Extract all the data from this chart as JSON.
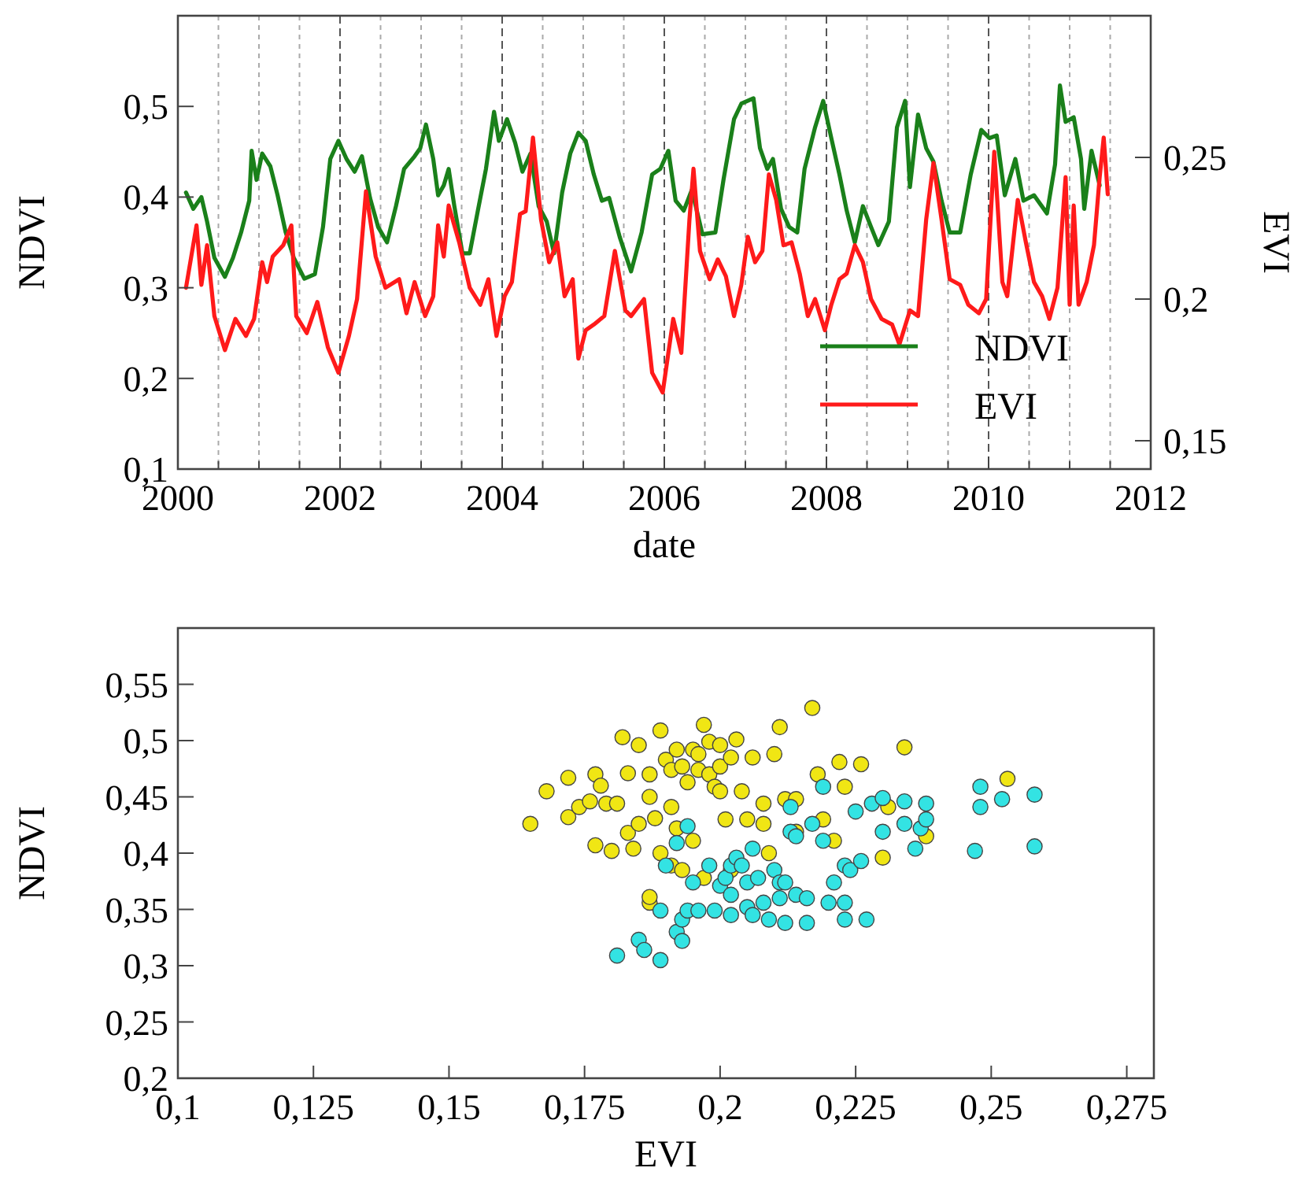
{
  "chart_data": [
    {
      "type": "line",
      "xlabel": "date",
      "ylabel": "NDVI",
      "y2label": "EVI",
      "xlim": [
        2000,
        2012
      ],
      "ylim": [
        0.1,
        0.6
      ],
      "y2lim": [
        0.14,
        0.3
      ],
      "xticks": [
        2000,
        {
          "value": 2000.5,
          "label": null
        },
        {
          "value": 2001,
          "label": null
        },
        {
          "value": 2001.5,
          "label": null
        },
        2002,
        {
          "value": 2002.5,
          "label": null
        },
        {
          "value": 2003,
          "label": null
        },
        {
          "value": 2003.5,
          "label": null
        },
        2004,
        {
          "value": 2004.5,
          "label": null
        },
        {
          "value": 2005,
          "label": null
        },
        {
          "value": 2005.5,
          "label": null
        },
        2006,
        {
          "value": 2006.5,
          "label": null
        },
        {
          "value": 2007,
          "label": null
        },
        {
          "value": 2007.5,
          "label": null
        },
        2008,
        {
          "value": 2008.5,
          "label": null
        },
        {
          "value": 2009,
          "label": null
        },
        {
          "value": 2009.5,
          "label": null
        },
        2010,
        {
          "value": 2010.5,
          "label": null
        },
        {
          "value": 2011,
          "label": null
        },
        {
          "value": 2011.5,
          "label": null
        },
        2012
      ],
      "yticks": [
        {
          "value": 0.1,
          "label": "0,1"
        },
        {
          "value": 0.2,
          "label": "0,2"
        },
        {
          "value": 0.3,
          "label": "0,3"
        },
        {
          "value": 0.4,
          "label": "0,4"
        },
        {
          "value": 0.5,
          "label": "0,5"
        }
      ],
      "y2ticks": [
        {
          "value": 0.15,
          "label": "0,15"
        },
        {
          "value": 0.2,
          "label": "0,2"
        },
        {
          "value": 0.25,
          "label": "0,25"
        }
      ],
      "grid": "x",
      "legend": "bottom right",
      "series": [
        {
          "name": "NDVI",
          "color": "#1a801a",
          "x": [
            2000.1,
            2000.19,
            2000.29,
            2000.36,
            2000.45,
            2000.58,
            2000.68,
            2000.78,
            2000.88,
            2000.91,
            2000.97,
            2001.04,
            2001.14,
            2001.23,
            2001.33,
            2001.43,
            2001.56,
            2001.69,
            2001.79,
            2001.88,
            2001.98,
            2002.08,
            2002.18,
            2002.27,
            2002.37,
            2002.47,
            2002.58,
            2002.69,
            2002.79,
            2002.92,
            2002.99,
            2003.06,
            2003.15,
            2003.21,
            2003.28,
            2003.34,
            2003.41,
            2003.51,
            2003.6,
            2003.7,
            2003.8,
            2003.9,
            2003.96,
            2004.06,
            2004.16,
            2004.25,
            2004.35,
            2004.45,
            2004.55,
            2004.64,
            2004.74,
            2004.84,
            2004.94,
            2005.03,
            2005.13,
            2005.23,
            2005.32,
            2005.45,
            2005.59,
            2005.72,
            2005.85,
            2005.95,
            2006.05,
            2006.14,
            2006.24,
            2006.34,
            2006.47,
            2006.63,
            2006.73,
            2006.86,
            2006.95,
            2007.1,
            2007.18,
            2007.27,
            2007.34,
            2007.44,
            2007.54,
            2007.64,
            2007.73,
            2007.86,
            2007.96,
            2008.06,
            2008.16,
            2008.25,
            2008.35,
            2008.45,
            2008.55,
            2008.64,
            2008.77,
            2008.87,
            2008.97,
            2009.03,
            2009.13,
            2009.23,
            2009.32,
            2009.42,
            2009.52,
            2009.65,
            2009.78,
            2009.91,
            2010.01,
            2010.1,
            2010.2,
            2010.33,
            2010.43,
            2010.56,
            2010.72,
            2010.82,
            2010.88,
            2010.95,
            2011.05,
            2011.14,
            2011.18,
            2011.27,
            2011.37
          ],
          "values": [
            0.405,
            0.387,
            0.4,
            0.373,
            0.333,
            0.312,
            0.333,
            0.361,
            0.396,
            0.451,
            0.419,
            0.448,
            0.434,
            0.402,
            0.361,
            0.333,
            0.31,
            0.315,
            0.367,
            0.442,
            0.462,
            0.442,
            0.428,
            0.445,
            0.399,
            0.367,
            0.35,
            0.39,
            0.431,
            0.445,
            0.454,
            0.48,
            0.442,
            0.402,
            0.413,
            0.431,
            0.39,
            0.338,
            0.338,
            0.385,
            0.431,
            0.494,
            0.462,
            0.486,
            0.46,
            0.428,
            0.448,
            0.39,
            0.373,
            0.338,
            0.405,
            0.448,
            0.471,
            0.462,
            0.425,
            0.396,
            0.399,
            0.356,
            0.318,
            0.361,
            0.425,
            0.431,
            0.451,
            0.396,
            0.385,
            0.408,
            0.359,
            0.361,
            0.419,
            0.486,
            0.503,
            0.509,
            0.454,
            0.431,
            0.442,
            0.387,
            0.367,
            0.361,
            0.431,
            0.477,
            0.506,
            0.465,
            0.425,
            0.385,
            0.35,
            0.39,
            0.367,
            0.347,
            0.373,
            0.477,
            0.506,
            0.411,
            0.491,
            0.454,
            0.439,
            0.396,
            0.361,
            0.361,
            0.425,
            0.474,
            0.465,
            0.468,
            0.402,
            0.442,
            0.396,
            0.402,
            0.382,
            0.436,
            0.523,
            0.483,
            0.488,
            0.442,
            0.387,
            0.451,
            0.413
          ]
        },
        {
          "name": "EVI",
          "color": "#ff1a1a",
          "axis": "y2",
          "x": [
            2000.1,
            2000.23,
            2000.29,
            2000.36,
            2000.45,
            2000.58,
            2000.71,
            2000.84,
            2000.94,
            2001.04,
            2001.1,
            2001.17,
            2001.3,
            2001.4,
            2001.46,
            2001.59,
            2001.72,
            2001.85,
            2001.98,
            2002.11,
            2002.21,
            2002.32,
            2002.44,
            2002.56,
            2002.73,
            2002.82,
            2002.92,
            2003.05,
            2003.15,
            2003.21,
            2003.28,
            2003.34,
            2003.47,
            2003.6,
            2003.73,
            2003.83,
            2003.93,
            2004.03,
            2004.12,
            2004.22,
            2004.29,
            2004.38,
            2004.48,
            2004.58,
            2004.68,
            2004.77,
            2004.87,
            2004.94,
            2005.03,
            2005.13,
            2005.26,
            2005.39,
            2005.52,
            2005.59,
            2005.75,
            2005.85,
            2005.98,
            2006.11,
            2006.21,
            2006.31,
            2006.36,
            2006.44,
            2006.56,
            2006.66,
            2006.76,
            2006.86,
            2006.95,
            2007.03,
            2007.12,
            2007.21,
            2007.29,
            2007.38,
            2007.47,
            2007.57,
            2007.67,
            2007.77,
            2007.86,
            2007.98,
            2008.06,
            2008.16,
            2008.25,
            2008.35,
            2008.45,
            2008.55,
            2008.68,
            2008.81,
            2008.9,
            2009.03,
            2009.13,
            2009.23,
            2009.32,
            2009.42,
            2009.52,
            2009.65,
            2009.75,
            2009.88,
            2009.97,
            2010.07,
            2010.17,
            2010.23,
            2010.36,
            2010.46,
            2010.56,
            2010.66,
            2010.75,
            2010.85,
            2010.95,
            2011.0,
            2011.05,
            2011.11,
            2011.21,
            2011.3,
            2011.37,
            2011.42,
            2011.47
          ],
          "values": [
            0.204,
            0.226,
            0.205,
            0.219,
            0.194,
            0.182,
            0.193,
            0.187,
            0.193,
            0.213,
            0.206,
            0.215,
            0.219,
            0.226,
            0.194,
            0.188,
            0.199,
            0.183,
            0.174,
            0.187,
            0.2,
            0.238,
            0.215,
            0.204,
            0.207,
            0.195,
            0.206,
            0.194,
            0.201,
            0.226,
            0.215,
            0.233,
            0.22,
            0.204,
            0.198,
            0.207,
            0.187,
            0.201,
            0.206,
            0.23,
            0.231,
            0.257,
            0.228,
            0.213,
            0.22,
            0.201,
            0.207,
            0.179,
            0.189,
            0.191,
            0.194,
            0.217,
            0.196,
            0.194,
            0.2,
            0.174,
            0.167,
            0.193,
            0.181,
            0.228,
            0.246,
            0.217,
            0.207,
            0.214,
            0.208,
            0.194,
            0.205,
            0.222,
            0.213,
            0.217,
            0.244,
            0.235,
            0.219,
            0.22,
            0.209,
            0.194,
            0.2,
            0.189,
            0.198,
            0.207,
            0.209,
            0.219,
            0.213,
            0.2,
            0.193,
            0.191,
            0.184,
            0.196,
            0.194,
            0.228,
            0.248,
            0.228,
            0.207,
            0.205,
            0.198,
            0.195,
            0.2,
            0.252,
            0.206,
            0.201,
            0.235,
            0.22,
            0.206,
            0.201,
            0.193,
            0.204,
            0.243,
            0.198,
            0.233,
            0.198,
            0.206,
            0.219,
            0.243,
            0.257,
            0.237
          ]
        }
      ]
    },
    {
      "type": "scatter",
      "xlabel": "EVI",
      "ylabel": "NDVI",
      "xlim": [
        0.1,
        0.28
      ],
      "ylim": [
        0.2,
        0.6
      ],
      "marker": "circle",
      "xticks": [
        {
          "value": 0.1,
          "label": "0,1"
        },
        {
          "value": 0.125,
          "label": "0,125"
        },
        {
          "value": 0.15,
          "label": "0,15"
        },
        {
          "value": 0.175,
          "label": "0,175"
        },
        {
          "value": 0.2,
          "label": "0,2"
        },
        {
          "value": 0.225,
          "label": "0,225"
        },
        {
          "value": 0.25,
          "label": "0,25"
        },
        {
          "value": 0.275,
          "label": "0,275"
        }
      ],
      "yticks": [
        {
          "value": 0.2,
          "label": "0,2"
        },
        {
          "value": 0.25,
          "label": "0,25"
        },
        {
          "value": 0.3,
          "label": "0,3"
        },
        {
          "value": 0.35,
          "label": "0,35"
        },
        {
          "value": 0.4,
          "label": "0,4"
        },
        {
          "value": 0.45,
          "label": "0,45"
        },
        {
          "value": 0.5,
          "label": "0,5"
        },
        {
          "value": 0.55,
          "label": "0,55"
        }
      ],
      "series": [
        {
          "color": "#f0e614",
          "x": [
            0.165,
            0.168,
            0.172,
            0.172,
            0.174,
            0.176,
            0.177,
            0.178,
            0.179,
            0.181,
            0.177,
            0.18,
            0.182,
            0.185,
            0.183,
            0.183,
            0.184,
            0.185,
            0.187,
            0.187,
            0.188,
            0.187,
            0.187,
            0.189,
            0.19,
            0.191,
            0.191,
            0.192,
            0.192,
            0.193,
            0.194,
            0.195,
            0.196,
            0.196,
            0.197,
            0.198,
            0.198,
            0.199,
            0.2,
            0.2,
            0.2,
            0.201,
            0.202,
            0.203,
            0.204,
            0.205,
            0.206,
            0.208,
            0.208,
            0.21,
            0.211,
            0.212,
            0.214,
            0.217,
            0.218,
            0.219,
            0.222,
            0.223,
            0.226,
            0.23,
            0.231,
            0.234,
            0.238,
            0.253,
            0.189,
            0.191,
            0.193,
            0.195,
            0.197,
            0.202,
            0.209,
            0.221,
            0.214
          ],
          "values": [
            0.426,
            0.455,
            0.467,
            0.432,
            0.441,
            0.446,
            0.47,
            0.46,
            0.444,
            0.444,
            0.407,
            0.402,
            0.503,
            0.496,
            0.471,
            0.418,
            0.404,
            0.426,
            0.47,
            0.45,
            0.431,
            0.356,
            0.361,
            0.509,
            0.483,
            0.474,
            0.441,
            0.422,
            0.492,
            0.477,
            0.463,
            0.492,
            0.488,
            0.474,
            0.514,
            0.499,
            0.47,
            0.459,
            0.496,
            0.477,
            0.455,
            0.43,
            0.485,
            0.501,
            0.455,
            0.43,
            0.485,
            0.444,
            0.426,
            0.488,
            0.512,
            0.448,
            0.448,
            0.529,
            0.47,
            0.43,
            0.481,
            0.459,
            0.479,
            0.396,
            0.441,
            0.494,
            0.415,
            0.466,
            0.4,
            0.389,
            0.385,
            0.411,
            0.378,
            0.385,
            0.4,
            0.411,
            0.419
          ]
        },
        {
          "color": "#33e3e3",
          "x": [
            0.181,
            0.185,
            0.186,
            0.189,
            0.189,
            0.19,
            0.192,
            0.192,
            0.193,
            0.193,
            0.194,
            0.195,
            0.194,
            0.196,
            0.198,
            0.199,
            0.2,
            0.201,
            0.202,
            0.202,
            0.202,
            0.203,
            0.204,
            0.205,
            0.205,
            0.206,
            0.206,
            0.207,
            0.208,
            0.209,
            0.21,
            0.211,
            0.211,
            0.212,
            0.212,
            0.213,
            0.213,
            0.214,
            0.214,
            0.216,
            0.216,
            0.217,
            0.219,
            0.219,
            0.22,
            0.221,
            0.223,
            0.223,
            0.223,
            0.224,
            0.225,
            0.226,
            0.227,
            0.228,
            0.23,
            0.23,
            0.234,
            0.234,
            0.236,
            0.237,
            0.238,
            0.238,
            0.247,
            0.248,
            0.248,
            0.252,
            0.258,
            0.258
          ],
          "values": [
            0.309,
            0.323,
            0.314,
            0.305,
            0.349,
            0.389,
            0.409,
            0.33,
            0.322,
            0.341,
            0.349,
            0.374,
            0.424,
            0.349,
            0.389,
            0.349,
            0.371,
            0.378,
            0.345,
            0.363,
            0.389,
            0.396,
            0.389,
            0.374,
            0.352,
            0.404,
            0.345,
            0.378,
            0.356,
            0.341,
            0.385,
            0.374,
            0.36,
            0.338,
            0.374,
            0.419,
            0.441,
            0.415,
            0.363,
            0.338,
            0.36,
            0.426,
            0.411,
            0.459,
            0.356,
            0.374,
            0.389,
            0.356,
            0.341,
            0.385,
            0.437,
            0.393,
            0.341,
            0.444,
            0.449,
            0.419,
            0.446,
            0.426,
            0.404,
            0.422,
            0.444,
            0.43,
            0.402,
            0.459,
            0.441,
            0.448,
            0.452,
            0.406
          ]
        }
      ]
    }
  ]
}
